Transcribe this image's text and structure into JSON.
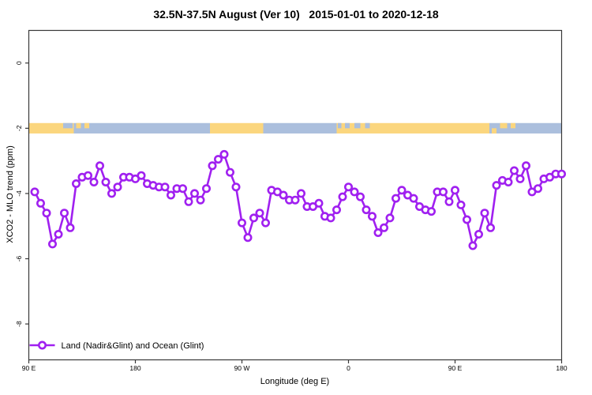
{
  "title": "32.5N-37.5N August (Ver 10)   2015-01-01 to 2020-12-18",
  "chart_data": {
    "type": "line",
    "title": "32.5N-37.5N August (Ver 10)   2015-01-01 to 2020-12-18",
    "xlabel": "Longitude (deg E)",
    "ylabel": "XCO2 - MLO trend (ppm)",
    "xlim": [
      90,
      540
    ],
    "ylim": [
      -9.1,
      1.0
    ],
    "grid": false,
    "legend_position": "bottom-left-inside",
    "x_ticks": [
      {
        "value": 90,
        "label": "90 E"
      },
      {
        "value": 180,
        "label": "180"
      },
      {
        "value": 270,
        "label": "90 W"
      },
      {
        "value": 360,
        "label": "0"
      },
      {
        "value": 450,
        "label": "90 E"
      },
      {
        "value": 540,
        "label": "180"
      }
    ],
    "y_ticks": [
      {
        "value": 0,
        "label": "0"
      },
      {
        "value": -2,
        "label": "-2"
      },
      {
        "value": -4,
        "label": "-4"
      },
      {
        "value": -6,
        "label": "-6"
      },
      {
        "value": -8,
        "label": "-8"
      }
    ],
    "legend": [
      {
        "label": "Land (Nadir&Glint) and Ocean (Glint)",
        "color": "#A020F0",
        "marker": "open-circle"
      }
    ],
    "series": [
      {
        "name": "Land (Nadir&Glint) and Ocean (Glint)",
        "x": [
          95,
          100,
          105,
          110,
          115,
          120,
          125,
          130,
          135,
          140,
          145,
          150,
          155,
          160,
          165,
          170,
          175,
          180,
          185,
          190,
          195,
          200,
          205,
          210,
          215,
          220,
          225,
          230,
          235,
          240,
          245,
          250,
          255,
          260,
          265,
          270,
          275,
          280,
          285,
          290,
          295,
          300,
          305,
          310,
          315,
          320,
          325,
          330,
          335,
          340,
          345,
          350,
          355,
          360,
          365,
          370,
          375,
          380,
          385,
          390,
          395,
          400,
          405,
          410,
          415,
          420,
          425,
          430,
          435,
          440,
          445,
          450,
          455,
          460,
          465,
          470,
          475,
          480,
          485,
          490,
          495,
          500,
          505,
          510,
          515,
          520,
          525,
          530,
          535,
          540
        ],
        "y": [
          -3.95,
          -4.3,
          -4.6,
          -5.55,
          -5.25,
          -4.6,
          -5.05,
          -3.7,
          -3.5,
          -3.45,
          -3.65,
          -3.15,
          -3.65,
          -4.0,
          -3.8,
          -3.5,
          -3.5,
          -3.55,
          -3.45,
          -3.7,
          -3.75,
          -3.8,
          -3.8,
          -4.05,
          -3.85,
          -3.85,
          -4.25,
          -4.0,
          -4.2,
          -3.85,
          -3.15,
          -2.95,
          -2.8,
          -3.35,
          -3.8,
          -4.9,
          -5.35,
          -4.75,
          -4.6,
          -4.9,
          -3.9,
          -3.95,
          -4.05,
          -4.2,
          -4.2,
          -4.0,
          -4.4,
          -4.4,
          -4.3,
          -4.7,
          -4.75,
          -4.5,
          -4.1,
          -3.8,
          -3.95,
          -4.1,
          -4.5,
          -4.7,
          -5.2,
          -5.05,
          -4.75,
          -4.15,
          -3.9,
          -4.05,
          -4.15,
          -4.4,
          -4.5,
          -4.55,
          -3.95,
          -3.95,
          -4.25,
          -3.9,
          -4.35,
          -4.8,
          -5.6,
          -5.25,
          -4.6,
          -5.05,
          -3.75,
          -3.6,
          -3.65,
          -3.3,
          -3.55,
          -3.15,
          -3.95,
          -3.85,
          -3.55,
          -3.5,
          -3.4,
          -3.4
        ]
      }
    ],
    "map_strip": {
      "description": "land-ocean longitude strip centered at -2 ppm",
      "land_color": "#FBD67E",
      "ocean_color": "#ABBFDD",
      "segments": [
        {
          "type": "land",
          "from": 90,
          "to": 128
        },
        {
          "type": "ocean",
          "from": 128,
          "to": 243
        },
        {
          "type": "land",
          "from": 243,
          "to": 288
        },
        {
          "type": "ocean",
          "from": 288,
          "to": 350
        },
        {
          "type": "land",
          "from": 350,
          "to": 479
        },
        {
          "type": "ocean",
          "from": 479,
          "to": 540
        }
      ],
      "flecks": [
        {
          "type": "ocean",
          "from": 119,
          "to": 127,
          "half": "top"
        },
        {
          "type": "land",
          "from": 130,
          "to": 134,
          "half": "top"
        },
        {
          "type": "land",
          "from": 137,
          "to": 141,
          "half": "top"
        },
        {
          "type": "ocean",
          "from": 351,
          "to": 354,
          "half": "top"
        },
        {
          "type": "ocean",
          "from": 357,
          "to": 361,
          "half": "top"
        },
        {
          "type": "ocean",
          "from": 365,
          "to": 370,
          "half": "top"
        },
        {
          "type": "ocean",
          "from": 374,
          "to": 378,
          "half": "top"
        },
        {
          "type": "land",
          "from": 481,
          "to": 485,
          "half": "bottom"
        },
        {
          "type": "land",
          "from": 488,
          "to": 494,
          "half": "top"
        },
        {
          "type": "land",
          "from": 497,
          "to": 501,
          "half": "top"
        }
      ]
    },
    "colors": {
      "line": "#A020F0",
      "marker_fill": "#FFFFFF",
      "axis": "#383838",
      "text": "#000000"
    }
  }
}
